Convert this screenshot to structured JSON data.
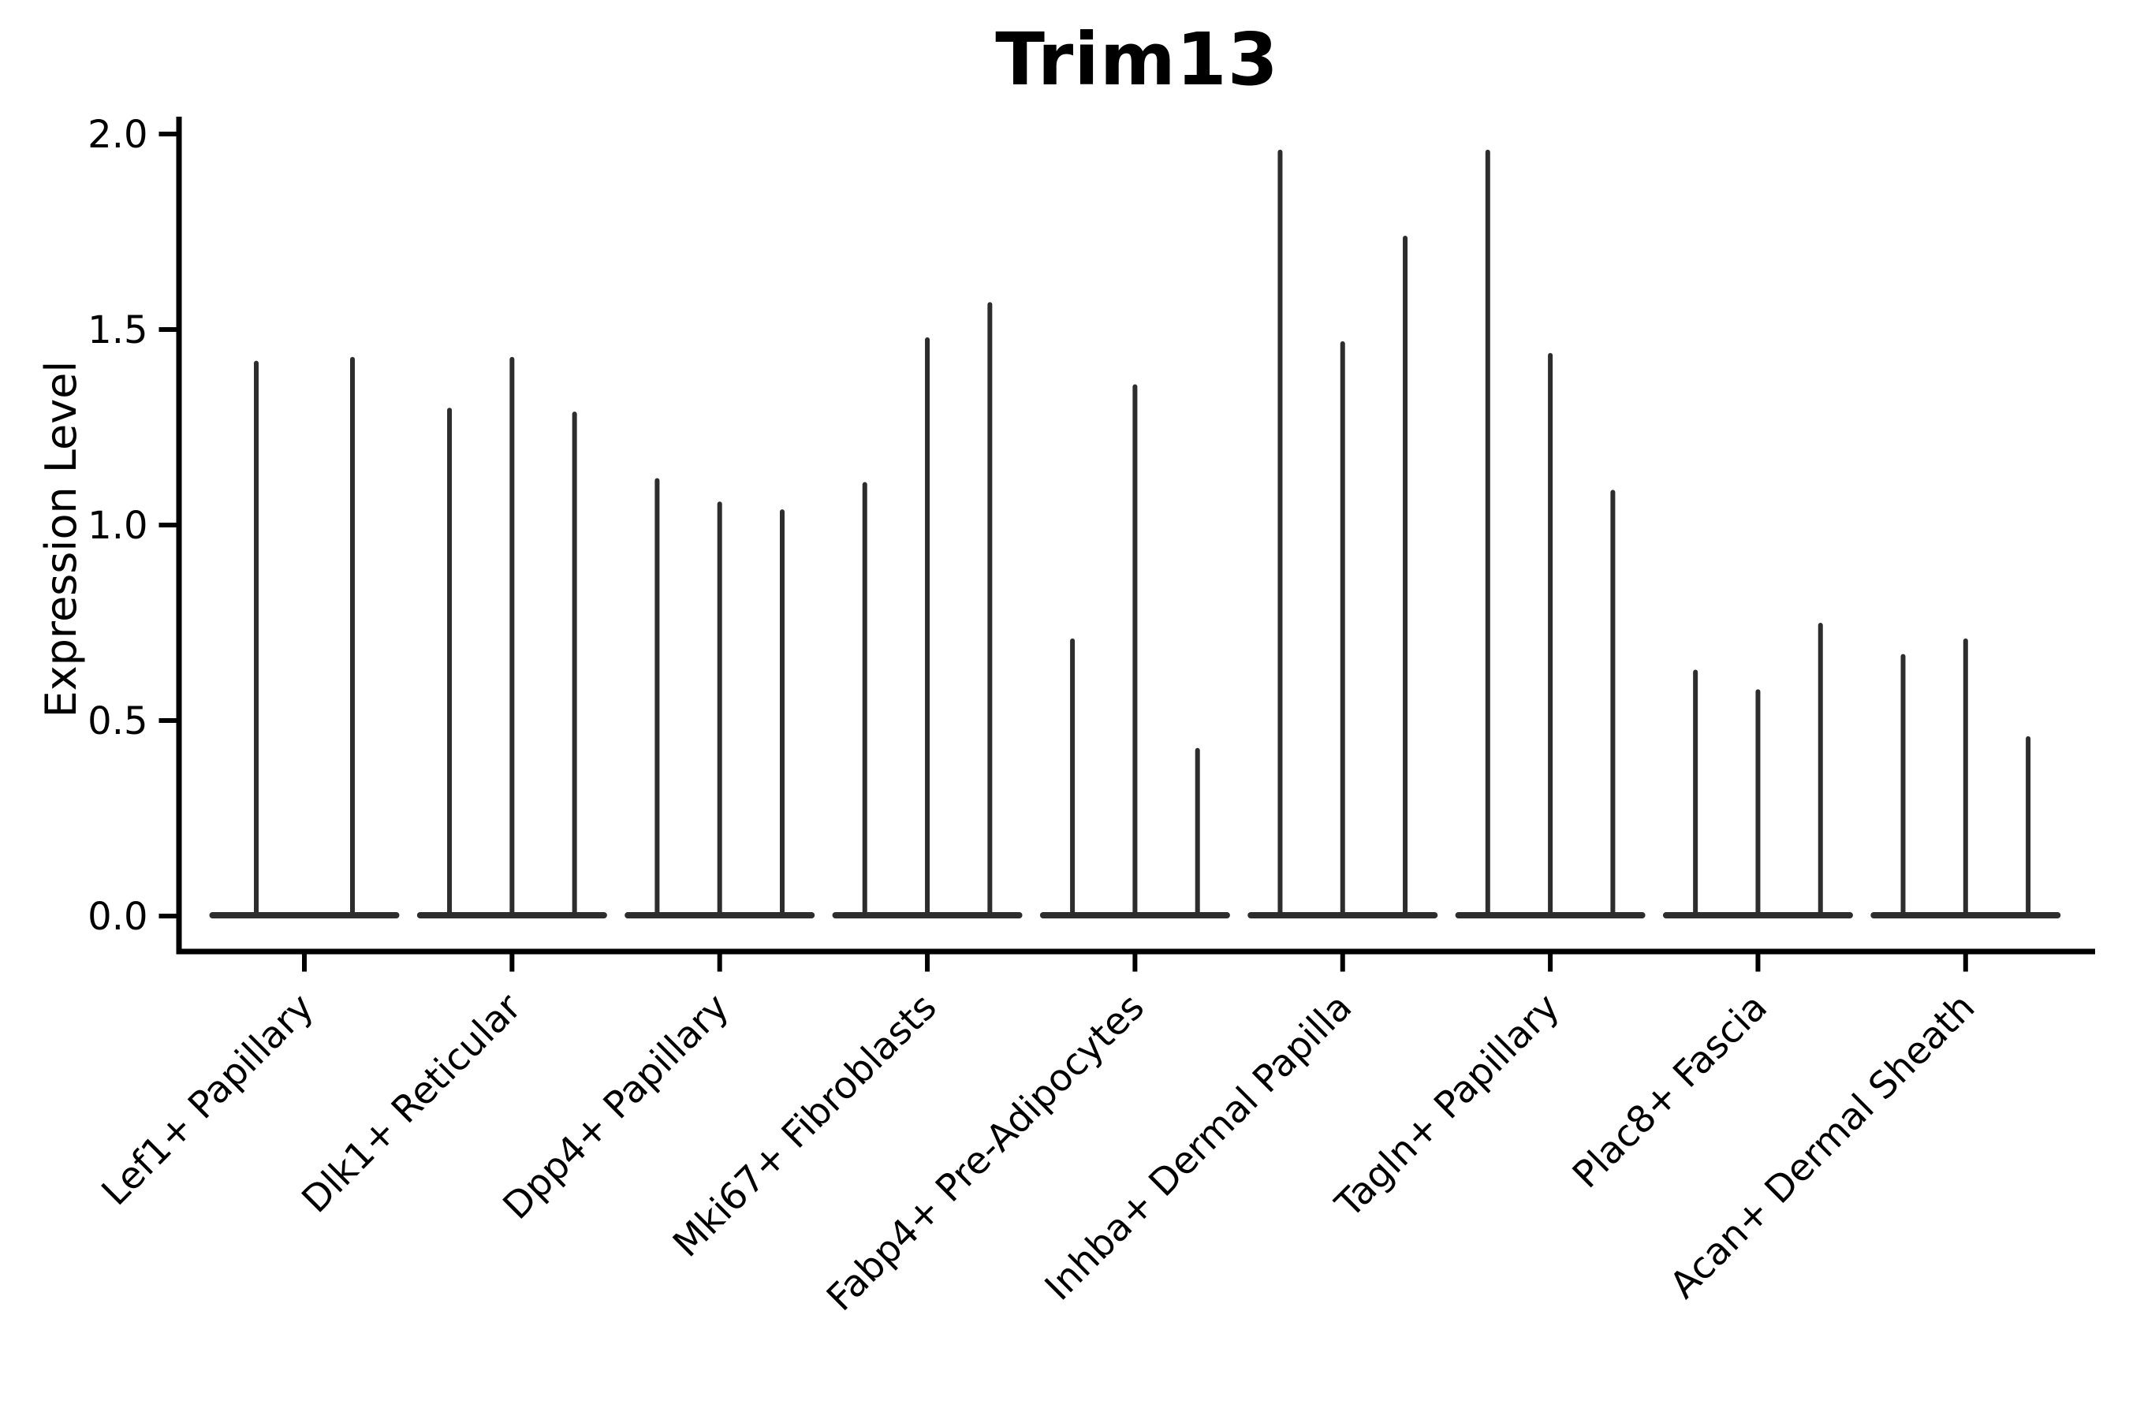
{
  "figure": {
    "title": "Trim13"
  },
  "chart_data": {
    "type": "violin",
    "title": "Trim13",
    "xlabel": "",
    "ylabel": "Expression Level",
    "ylim": [
      0.0,
      2.0
    ],
    "yticks": [
      0.0,
      0.5,
      1.0,
      1.5,
      2.0
    ],
    "ytick_labels": [
      "0.0",
      "0.5",
      "1.0",
      "1.5",
      "2.0"
    ],
    "grid": false,
    "legend_position": "none",
    "categories": [
      "Lef1+ Papillary",
      "Dlk1+ Reticular",
      "Dpp4+ Papillary",
      "Mki67+ Fibroblasts",
      "Fabp4+ Pre-Adipocytes",
      "Inhba+ Dermal Papilla",
      "Tagln+ Papillary",
      "Plac8+ Fascia",
      "Acan+ Dermal Sheath"
    ],
    "groups": [
      {
        "label": "Lef1+ Papillary",
        "violin_maxima": [
          1.42,
          1.43
        ]
      },
      {
        "label": "Dlk1+ Reticular",
        "violin_maxima": [
          1.3,
          1.43,
          1.29
        ]
      },
      {
        "label": "Dpp4+ Papillary",
        "violin_maxima": [
          1.12,
          1.06,
          1.04
        ]
      },
      {
        "label": "Mki67+ Fibroblasts",
        "violin_maxima": [
          1.11,
          1.48,
          1.57
        ]
      },
      {
        "label": "Fabp4+ Pre-Adipocytes",
        "violin_maxima": [
          0.71,
          1.36,
          0.43
        ]
      },
      {
        "label": "Inhba+ Dermal Papilla",
        "violin_maxima": [
          1.96,
          1.47,
          1.74
        ]
      },
      {
        "label": "Tagln+ Papillary",
        "violin_maxima": [
          1.96,
          1.44,
          1.09
        ]
      },
      {
        "label": "Plac8+ Fascia",
        "violin_maxima": [
          0.63,
          0.58,
          0.75
        ]
      },
      {
        "label": "Acan+ Dermal Sheath",
        "violin_maxima": [
          0.67,
          0.71,
          0.46
        ]
      }
    ],
    "description": "Violin plot of expression; each cluster shows 2-3 thin zero-inflated violins (wide flat base at 0 with a thin spike up to the max expression value).",
    "colors": {
      "violin": "#2d2d2d",
      "axis": "#000000",
      "text": "#000000",
      "background": "#ffffff"
    }
  }
}
